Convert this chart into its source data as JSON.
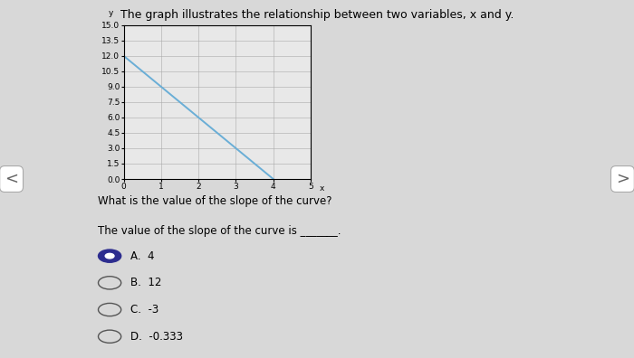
{
  "title": "The graph illustrates the relationship between two variables, x and y.",
  "x_data": [
    0,
    4
  ],
  "y_data": [
    12,
    0
  ],
  "xlim": [
    0,
    5
  ],
  "ylim": [
    0,
    15.0
  ],
  "xticks": [
    0,
    1,
    2,
    3,
    4,
    5
  ],
  "yticks": [
    0.0,
    1.5,
    3.0,
    4.5,
    6.0,
    7.5,
    9.0,
    10.5,
    12.0,
    13.5,
    15.0
  ],
  "xlabel": "x",
  "ylabel": "y",
  "line_color": "#6aaed6",
  "line_width": 1.4,
  "grid_color": "#aaaaaa",
  "background_color": "#e8e8e8",
  "fig_background": "#d8d8d8",
  "question_text": "What is the value of the slope of the curve?",
  "answer_text": "The value of the slope of the curve is _______.",
  "choices": [
    "A.  4",
    "B.  12",
    "C.  -3",
    "D.  -0.333"
  ],
  "selected_choice": 0,
  "title_fontsize": 9,
  "axis_fontsize": 6.5,
  "question_fontsize": 8.5,
  "choice_fontsize": 8.5
}
